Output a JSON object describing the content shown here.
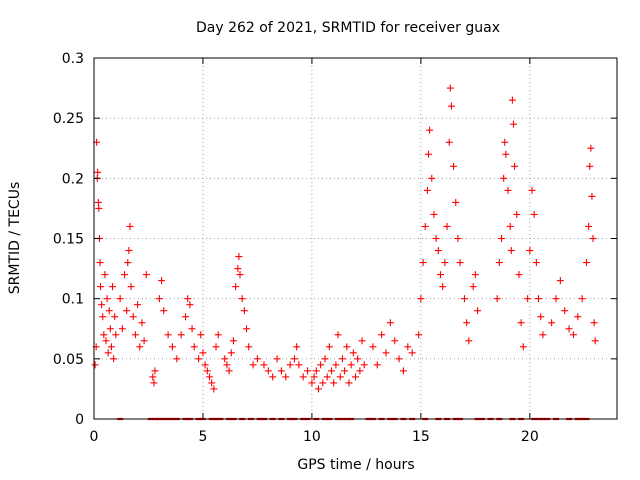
{
  "chart_data": {
    "type": "scatter",
    "title": "Day 262 of 2021, SRMTID for receiver guax",
    "xlabel": "GPS time / hours",
    "ylabel": "SRMTID / TECUs",
    "xlim": [
      0,
      24
    ],
    "ylim": [
      0,
      0.3
    ],
    "x_ticks": [
      0,
      5,
      10,
      15,
      20
    ],
    "x_tick_labels": [
      "0",
      "5",
      "10",
      "15",
      "20"
    ],
    "y_ticks": [
      0,
      0.05,
      0.1,
      0.15,
      0.2,
      0.25,
      0.3
    ],
    "y_tick_labels": [
      "0",
      "0.05",
      "0.1",
      "0.15",
      "0.2",
      "0.25",
      "0.3"
    ],
    "grid": true,
    "marker": "plus",
    "series": [
      {
        "name": "SRMTID",
        "color": "#ff0000",
        "note": "approximate sampled points; values read from the plot",
        "points": [
          [
            0.05,
            0.045
          ],
          [
            0.1,
            0.06
          ],
          [
            0.12,
            0.23
          ],
          [
            0.15,
            0.2
          ],
          [
            0.17,
            0.205
          ],
          [
            0.2,
            0.18
          ],
          [
            0.22,
            0.175
          ],
          [
            0.25,
            0.15
          ],
          [
            0.28,
            0.13
          ],
          [
            0.3,
            0.11
          ],
          [
            0.35,
            0.095
          ],
          [
            0.4,
            0.085
          ],
          [
            0.45,
            0.07
          ],
          [
            0.5,
            0.12
          ],
          [
            0.55,
            0.065
          ],
          [
            0.6,
            0.1
          ],
          [
            0.65,
            0.055
          ],
          [
            0.7,
            0.09
          ],
          [
            0.75,
            0.075
          ],
          [
            0.8,
            0.06
          ],
          [
            0.85,
            0.11
          ],
          [
            0.9,
            0.05
          ],
          [
            0.95,
            0.085
          ],
          [
            1.0,
            0.07
          ],
          [
            1.2,
            0.1
          ],
          [
            1.3,
            0.075
          ],
          [
            1.4,
            0.12
          ],
          [
            1.5,
            0.09
          ],
          [
            1.55,
            0.13
          ],
          [
            1.6,
            0.14
          ],
          [
            1.65,
            0.16
          ],
          [
            1.7,
            0.11
          ],
          [
            1.8,
            0.085
          ],
          [
            1.9,
            0.07
          ],
          [
            2.0,
            0.095
          ],
          [
            2.1,
            0.06
          ],
          [
            2.2,
            0.08
          ],
          [
            2.3,
            0.065
          ],
          [
            2.4,
            0.12
          ],
          [
            2.7,
            0.035
          ],
          [
            2.75,
            0.03
          ],
          [
            2.8,
            0.04
          ],
          [
            3.0,
            0.1
          ],
          [
            3.1,
            0.115
          ],
          [
            3.2,
            0.09
          ],
          [
            3.4,
            0.07
          ],
          [
            3.6,
            0.06
          ],
          [
            3.8,
            0.05
          ],
          [
            4.0,
            0.07
          ],
          [
            4.2,
            0.085
          ],
          [
            4.3,
            0.1
          ],
          [
            4.4,
            0.095
          ],
          [
            4.5,
            0.075
          ],
          [
            4.6,
            0.06
          ],
          [
            4.8,
            0.05
          ],
          [
            4.9,
            0.07
          ],
          [
            5.0,
            0.055
          ],
          [
            5.1,
            0.045
          ],
          [
            5.2,
            0.04
          ],
          [
            5.3,
            0.035
          ],
          [
            5.4,
            0.03
          ],
          [
            5.5,
            0.025
          ],
          [
            5.6,
            0.06
          ],
          [
            5.7,
            0.07
          ],
          [
            6.0,
            0.05
          ],
          [
            6.1,
            0.045
          ],
          [
            6.2,
            0.04
          ],
          [
            6.3,
            0.055
          ],
          [
            6.4,
            0.065
          ],
          [
            6.5,
            0.11
          ],
          [
            6.6,
            0.125
          ],
          [
            6.65,
            0.135
          ],
          [
            6.7,
            0.12
          ],
          [
            6.8,
            0.1
          ],
          [
            6.9,
            0.09
          ],
          [
            7.0,
            0.075
          ],
          [
            7.1,
            0.06
          ],
          [
            7.3,
            0.045
          ],
          [
            7.5,
            0.05
          ],
          [
            7.8,
            0.045
          ],
          [
            8.0,
            0.04
          ],
          [
            8.2,
            0.035
          ],
          [
            8.4,
            0.05
          ],
          [
            8.6,
            0.04
          ],
          [
            8.8,
            0.035
          ],
          [
            9.0,
            0.045
          ],
          [
            9.2,
            0.05
          ],
          [
            9.3,
            0.06
          ],
          [
            9.4,
            0.045
          ],
          [
            9.6,
            0.035
          ],
          [
            9.8,
            0.04
          ],
          [
            10.0,
            0.03
          ],
          [
            10.1,
            0.035
          ],
          [
            10.2,
            0.04
          ],
          [
            10.3,
            0.025
          ],
          [
            10.4,
            0.045
          ],
          [
            10.5,
            0.03
          ],
          [
            10.6,
            0.05
          ],
          [
            10.7,
            0.035
          ],
          [
            10.8,
            0.06
          ],
          [
            10.9,
            0.04
          ],
          [
            11.0,
            0.03
          ],
          [
            11.1,
            0.045
          ],
          [
            11.2,
            0.07
          ],
          [
            11.3,
            0.035
          ],
          [
            11.4,
            0.05
          ],
          [
            11.5,
            0.04
          ],
          [
            11.6,
            0.06
          ],
          [
            11.7,
            0.03
          ],
          [
            11.8,
            0.045
          ],
          [
            11.9,
            0.055
          ],
          [
            12.0,
            0.035
          ],
          [
            12.1,
            0.05
          ],
          [
            12.2,
            0.04
          ],
          [
            12.3,
            0.065
          ],
          [
            12.4,
            0.045
          ],
          [
            12.8,
            0.06
          ],
          [
            13.0,
            0.045
          ],
          [
            13.2,
            0.07
          ],
          [
            13.4,
            0.055
          ],
          [
            13.6,
            0.08
          ],
          [
            13.8,
            0.065
          ],
          [
            14.0,
            0.05
          ],
          [
            14.2,
            0.04
          ],
          [
            14.4,
            0.06
          ],
          [
            14.6,
            0.055
          ],
          [
            14.9,
            0.07
          ],
          [
            15.0,
            0.1
          ],
          [
            15.1,
            0.13
          ],
          [
            15.2,
            0.16
          ],
          [
            15.3,
            0.19
          ],
          [
            15.35,
            0.22
          ],
          [
            15.4,
            0.24
          ],
          [
            15.5,
            0.2
          ],
          [
            15.6,
            0.17
          ],
          [
            15.7,
            0.15
          ],
          [
            15.8,
            0.14
          ],
          [
            15.9,
            0.12
          ],
          [
            16.0,
            0.11
          ],
          [
            16.1,
            0.13
          ],
          [
            16.2,
            0.16
          ],
          [
            16.3,
            0.23
          ],
          [
            16.35,
            0.275
          ],
          [
            16.4,
            0.26
          ],
          [
            16.5,
            0.21
          ],
          [
            16.6,
            0.18
          ],
          [
            16.7,
            0.15
          ],
          [
            16.8,
            0.13
          ],
          [
            17.0,
            0.1
          ],
          [
            17.1,
            0.08
          ],
          [
            17.2,
            0.065
          ],
          [
            17.4,
            0.11
          ],
          [
            17.5,
            0.12
          ],
          [
            17.6,
            0.09
          ],
          [
            18.5,
            0.1
          ],
          [
            18.6,
            0.13
          ],
          [
            18.7,
            0.15
          ],
          [
            18.8,
            0.2
          ],
          [
            18.85,
            0.23
          ],
          [
            18.9,
            0.22
          ],
          [
            19.0,
            0.19
          ],
          [
            19.1,
            0.16
          ],
          [
            19.15,
            0.14
          ],
          [
            19.2,
            0.265
          ],
          [
            19.25,
            0.245
          ],
          [
            19.3,
            0.21
          ],
          [
            19.4,
            0.17
          ],
          [
            19.5,
            0.12
          ],
          [
            19.6,
            0.08
          ],
          [
            19.7,
            0.06
          ],
          [
            19.9,
            0.1
          ],
          [
            20.0,
            0.14
          ],
          [
            20.1,
            0.19
          ],
          [
            20.2,
            0.17
          ],
          [
            20.3,
            0.13
          ],
          [
            20.4,
            0.1
          ],
          [
            20.5,
            0.085
          ],
          [
            20.6,
            0.07
          ],
          [
            21.0,
            0.08
          ],
          [
            21.2,
            0.1
          ],
          [
            21.4,
            0.115
          ],
          [
            21.6,
            0.09
          ],
          [
            21.8,
            0.075
          ],
          [
            22.0,
            0.07
          ],
          [
            22.2,
            0.085
          ],
          [
            22.4,
            0.1
          ],
          [
            22.6,
            0.13
          ],
          [
            22.7,
            0.16
          ],
          [
            22.75,
            0.21
          ],
          [
            22.8,
            0.225
          ],
          [
            22.85,
            0.185
          ],
          [
            22.9,
            0.15
          ],
          [
            22.95,
            0.08
          ],
          [
            23.0,
            0.065
          ]
        ]
      }
    ],
    "zero_points_x": [
      1.2,
      2.6,
      2.8,
      3.0,
      3.2,
      3.4,
      3.6,
      3.8,
      4.2,
      4.4,
      4.8,
      5.0,
      5.4,
      5.6,
      5.8,
      6.2,
      6.4,
      6.8,
      7.2,
      7.6,
      7.8,
      8.2,
      8.6,
      9.0,
      9.2,
      9.6,
      9.8,
      10.2,
      10.6,
      10.8,
      11.2,
      11.4,
      11.6,
      11.8,
      12.6,
      12.8,
      13.2,
      13.6,
      13.8,
      14.2,
      14.6,
      15.2,
      15.8,
      16.2,
      16.6,
      16.8,
      17.6,
      17.8,
      18.2,
      18.6,
      19.2,
      19.6,
      20.2,
      20.4,
      20.6,
      20.8,
      21.2,
      21.8,
      22.2,
      22.4,
      22.6
    ]
  }
}
